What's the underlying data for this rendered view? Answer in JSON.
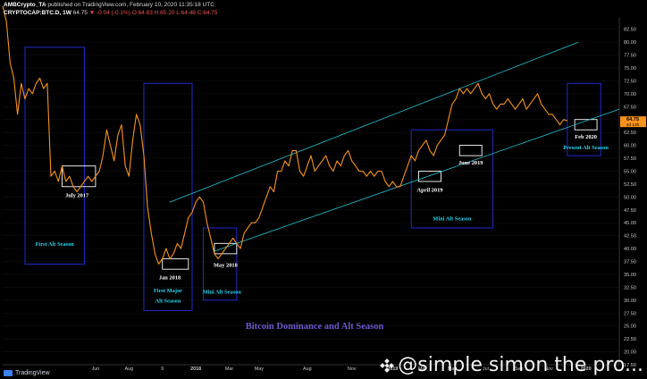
{
  "header": {
    "line1_author": "AMBCrypto_TA",
    "line1_rest": " published on TradingView.com, February 10, 2020 11:35:18 UTC",
    "symbol": "CRYPTOCAP:BTC.D, 1W",
    "last": "64.75",
    "change": "▼ -0.04 (-0.1%)",
    "ohlc": "O:64.83 H:65.20 L:64.48 C:64.75"
  },
  "footer": {
    "logo": "TradingView",
    "watermark": "@simple simon the pro..."
  },
  "colors": {
    "price": "#f7931a",
    "box": "#1f2ccc",
    "channel": "#22c4d6",
    "marker": "#ffffff",
    "label_cyan": "#22d3ee",
    "title": "#6a5acd",
    "price_tag": "#f7931a"
  },
  "chart_data": {
    "type": "line",
    "title": "Bitcoin Dominance and Alt Season",
    "xlabel": "",
    "ylabel": "",
    "ylim": [
      17.5,
      84
    ],
    "y_ticks": [
      "82.50",
      "80.00",
      "77.50",
      "75.00",
      "72.50",
      "70.00",
      "67.50",
      "65.00",
      "62.50",
      "60.00",
      "57.50",
      "55.00",
      "52.50",
      "50.00",
      "47.50",
      "45.00",
      "42.50",
      "40.00",
      "37.50",
      "35.00",
      "32.50",
      "30.00",
      "27.50",
      "25.00",
      "22.50",
      "20.00",
      "17.50"
    ],
    "x_ticks": [
      {
        "label": "Jun",
        "w": 25
      },
      {
        "label": "Aug",
        "w": 34
      },
      {
        "label": "9",
        "w": 43
      },
      {
        "label": "2018",
        "w": 52
      },
      {
        "label": "Mar",
        "w": 61
      },
      {
        "label": "May",
        "w": 69
      },
      {
        "label": "Aug",
        "w": 82
      },
      {
        "label": "Nov",
        "w": 94
      },
      {
        "label": "2019",
        "w": 105
      },
      {
        "label": "Mar",
        "w": 113
      },
      {
        "label": "May",
        "w": 121
      },
      {
        "label": "Jul",
        "w": 130
      },
      {
        "label": "Sep",
        "w": 139
      },
      {
        "label": "Nov",
        "w": 147
      },
      {
        "label": "2020",
        "w": 157
      }
    ],
    "last_price": "64.75",
    "last_time": "4d 12h",
    "w_max": 166,
    "series": [
      {
        "values": [
          [
            0,
            87
          ],
          [
            1,
            84
          ],
          [
            2,
            76
          ],
          [
            3,
            73
          ],
          [
            4,
            66
          ],
          [
            5,
            72
          ],
          [
            6,
            69
          ],
          [
            7,
            71
          ],
          [
            8,
            70
          ],
          [
            9,
            72
          ],
          [
            10,
            73
          ],
          [
            11,
            71
          ],
          [
            12,
            72
          ],
          [
            13,
            54
          ],
          [
            14,
            55
          ],
          [
            15,
            53
          ],
          [
            16,
            56
          ],
          [
            17,
            53
          ],
          [
            18,
            54
          ],
          [
            19,
            52
          ],
          [
            20,
            51
          ],
          [
            21,
            52
          ],
          [
            22,
            53
          ],
          [
            23,
            54
          ],
          [
            24,
            53
          ],
          [
            25,
            54
          ],
          [
            26,
            55
          ],
          [
            27,
            58
          ],
          [
            28,
            63
          ],
          [
            29,
            60
          ],
          [
            30,
            57
          ],
          [
            31,
            62
          ],
          [
            32,
            64
          ],
          [
            33,
            56
          ],
          [
            34,
            54
          ],
          [
            35,
            61
          ],
          [
            36,
            66
          ],
          [
            37,
            64
          ],
          [
            38,
            58
          ],
          [
            39,
            48
          ],
          [
            40,
            43
          ],
          [
            41,
            39
          ],
          [
            42,
            37
          ],
          [
            43,
            38
          ],
          [
            44,
            40
          ],
          [
            45,
            38
          ],
          [
            46,
            39
          ],
          [
            47,
            41
          ],
          [
            48,
            40
          ],
          [
            49,
            43
          ],
          [
            50,
            46
          ],
          [
            51,
            47
          ],
          [
            52,
            49
          ],
          [
            53,
            50
          ],
          [
            54,
            49
          ],
          [
            55,
            45
          ],
          [
            56,
            42
          ],
          [
            57,
            39
          ],
          [
            58,
            38
          ],
          [
            59,
            39
          ],
          [
            60,
            40
          ],
          [
            61,
            41
          ],
          [
            62,
            42
          ],
          [
            63,
            41
          ],
          [
            64,
            40
          ],
          [
            65,
            43
          ],
          [
            66,
            44
          ],
          [
            67,
            45
          ],
          [
            68,
            45
          ],
          [
            69,
            46
          ],
          [
            70,
            48
          ],
          [
            71,
            50
          ],
          [
            72,
            52
          ],
          [
            73,
            51
          ],
          [
            74,
            55
          ],
          [
            75,
            55
          ],
          [
            76,
            57
          ],
          [
            77,
            56
          ],
          [
            78,
            59
          ],
          [
            79,
            59
          ],
          [
            80,
            55
          ],
          [
            81,
            54
          ],
          [
            82,
            56
          ],
          [
            83,
            58
          ],
          [
            84,
            55
          ],
          [
            85,
            56
          ],
          [
            86,
            57
          ],
          [
            87,
            58
          ],
          [
            88,
            56
          ],
          [
            89,
            55
          ],
          [
            90,
            57
          ],
          [
            91,
            56
          ],
          [
            92,
            58
          ],
          [
            93,
            59
          ],
          [
            94,
            57
          ],
          [
            95,
            56
          ],
          [
            96,
            55
          ],
          [
            97,
            55
          ],
          [
            98,
            54
          ],
          [
            99,
            55
          ],
          [
            100,
            54
          ],
          [
            101,
            55
          ],
          [
            102,
            55
          ],
          [
            103,
            53
          ],
          [
            104,
            52
          ],
          [
            105,
            53
          ],
          [
            106,
            52
          ],
          [
            107,
            52
          ],
          [
            108,
            54
          ],
          [
            109,
            56
          ],
          [
            110,
            58
          ],
          [
            111,
            57
          ],
          [
            112,
            59
          ],
          [
            113,
            60
          ],
          [
            114,
            61
          ],
          [
            115,
            59
          ],
          [
            116,
            58
          ],
          [
            117,
            60
          ],
          [
            118,
            61
          ],
          [
            119,
            62
          ],
          [
            120,
            65
          ],
          [
            121,
            68
          ],
          [
            122,
            69
          ],
          [
            123,
            71
          ],
          [
            124,
            70
          ],
          [
            125,
            71
          ],
          [
            126,
            70
          ],
          [
            127,
            71
          ],
          [
            128,
            72
          ],
          [
            129,
            70
          ],
          [
            130,
            69
          ],
          [
            131,
            70
          ],
          [
            132,
            68
          ],
          [
            133,
            67
          ],
          [
            134,
            68
          ],
          [
            135,
            68
          ],
          [
            136,
            69
          ],
          [
            137,
            68
          ],
          [
            138,
            67
          ],
          [
            139,
            68
          ],
          [
            140,
            69
          ],
          [
            141,
            67
          ],
          [
            142,
            68
          ],
          [
            143,
            69
          ],
          [
            144,
            70
          ],
          [
            145,
            68
          ],
          [
            146,
            67
          ],
          [
            147,
            66
          ],
          [
            148,
            66
          ],
          [
            149,
            65
          ],
          [
            150,
            64
          ],
          [
            151,
            65
          ],
          [
            152,
            64.75
          ]
        ]
      }
    ],
    "channel_lines": [
      {
        "from": [
          45,
          49
        ],
        "to": [
          155,
          80
        ]
      },
      {
        "from": [
          57,
          39.5
        ],
        "to": [
          166,
          67
        ]
      }
    ],
    "boxes": [
      {
        "w0": 6,
        "w1": 22,
        "y0": 37,
        "y1": 79,
        "color": "box"
      },
      {
        "w0": 38,
        "w1": 51,
        "y0": 28,
        "y1": 72,
        "color": "box"
      },
      {
        "w0": 54,
        "w1": 63,
        "y0": 30,
        "y1": 44,
        "color": "box"
      },
      {
        "w0": 110,
        "w1": 132,
        "y0": 44,
        "y1": 63,
        "color": "box"
      },
      {
        "w0": 152,
        "w1": 161,
        "y0": 58,
        "y1": 72,
        "color": "box"
      },
      {
        "w0": 16,
        "w1": 25,
        "y0": 52,
        "y1": 56,
        "color": "marker"
      },
      {
        "w0": 43,
        "w1": 50,
        "y0": 36,
        "y1": 38,
        "color": "marker"
      },
      {
        "w0": 57,
        "w1": 63,
        "y0": 39,
        "y1": 41,
        "color": "marker"
      },
      {
        "w0": 112,
        "w1": 118,
        "y0": 53,
        "y1": 55,
        "color": "marker"
      },
      {
        "w0": 123,
        "w1": 129,
        "y0": 58,
        "y1": 60,
        "color": "marker"
      },
      {
        "w0": 154,
        "w1": 160,
        "y0": 63,
        "y1": 65,
        "color": "marker"
      }
    ],
    "annotations": [
      {
        "text": "July 2017",
        "w": 20,
        "y": 50,
        "color": "marker"
      },
      {
        "text": "First Alt Season",
        "w": 14,
        "y": 40.5,
        "color": "label_cyan"
      },
      {
        "text": "Jan 2018",
        "w": 45,
        "y": 34,
        "color": "marker"
      },
      {
        "text": "First Major",
        "w": 44.5,
        "y": 31.5,
        "color": "label_cyan"
      },
      {
        "text": "Alt Season",
        "w": 44.5,
        "y": 29.5,
        "color": "label_cyan"
      },
      {
        "text": "May 2018",
        "w": 60,
        "y": 36.5,
        "color": "marker"
      },
      {
        "text": "Mini Alt Season",
        "w": 59,
        "y": 31.3,
        "color": "label_cyan"
      },
      {
        "text": "April 2019",
        "w": 115,
        "y": 51,
        "color": "marker"
      },
      {
        "text": "June 2019",
        "w": 126,
        "y": 56.3,
        "color": "marker"
      },
      {
        "text": "Mini Alt Season",
        "w": 121,
        "y": 45.5,
        "color": "label_cyan"
      },
      {
        "text": "Feb 2020",
        "w": 157,
        "y": 61.3,
        "color": "marker"
      },
      {
        "text": "Present Alt Season",
        "w": 157,
        "y": 59.2,
        "color": "label_cyan"
      }
    ]
  }
}
